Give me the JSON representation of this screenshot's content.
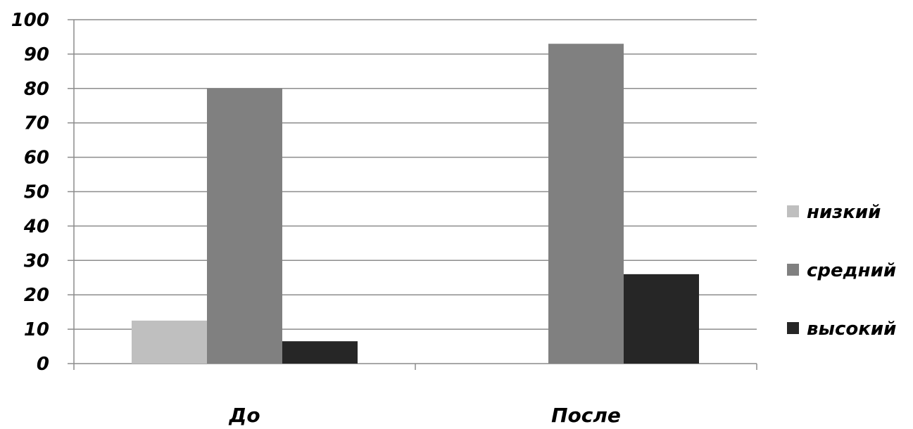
{
  "chart_data": {
    "type": "bar",
    "categories": [
      "До",
      "После"
    ],
    "series": [
      {
        "name": "низкий",
        "values": [
          12.5,
          0
        ],
        "color": "#bfbfbf"
      },
      {
        "name": "средний",
        "values": [
          80,
          93
        ],
        "color": "#808080"
      },
      {
        "name": "высокий",
        "values": [
          6.5,
          26
        ],
        "color": "#262626"
      }
    ],
    "ylim": [
      0,
      100
    ],
    "yticks": [
      0,
      10,
      20,
      30,
      40,
      50,
      60,
      70,
      80,
      90,
      100
    ],
    "grid": true,
    "legend": "right",
    "title": "",
    "xlabel": "",
    "ylabel": ""
  }
}
